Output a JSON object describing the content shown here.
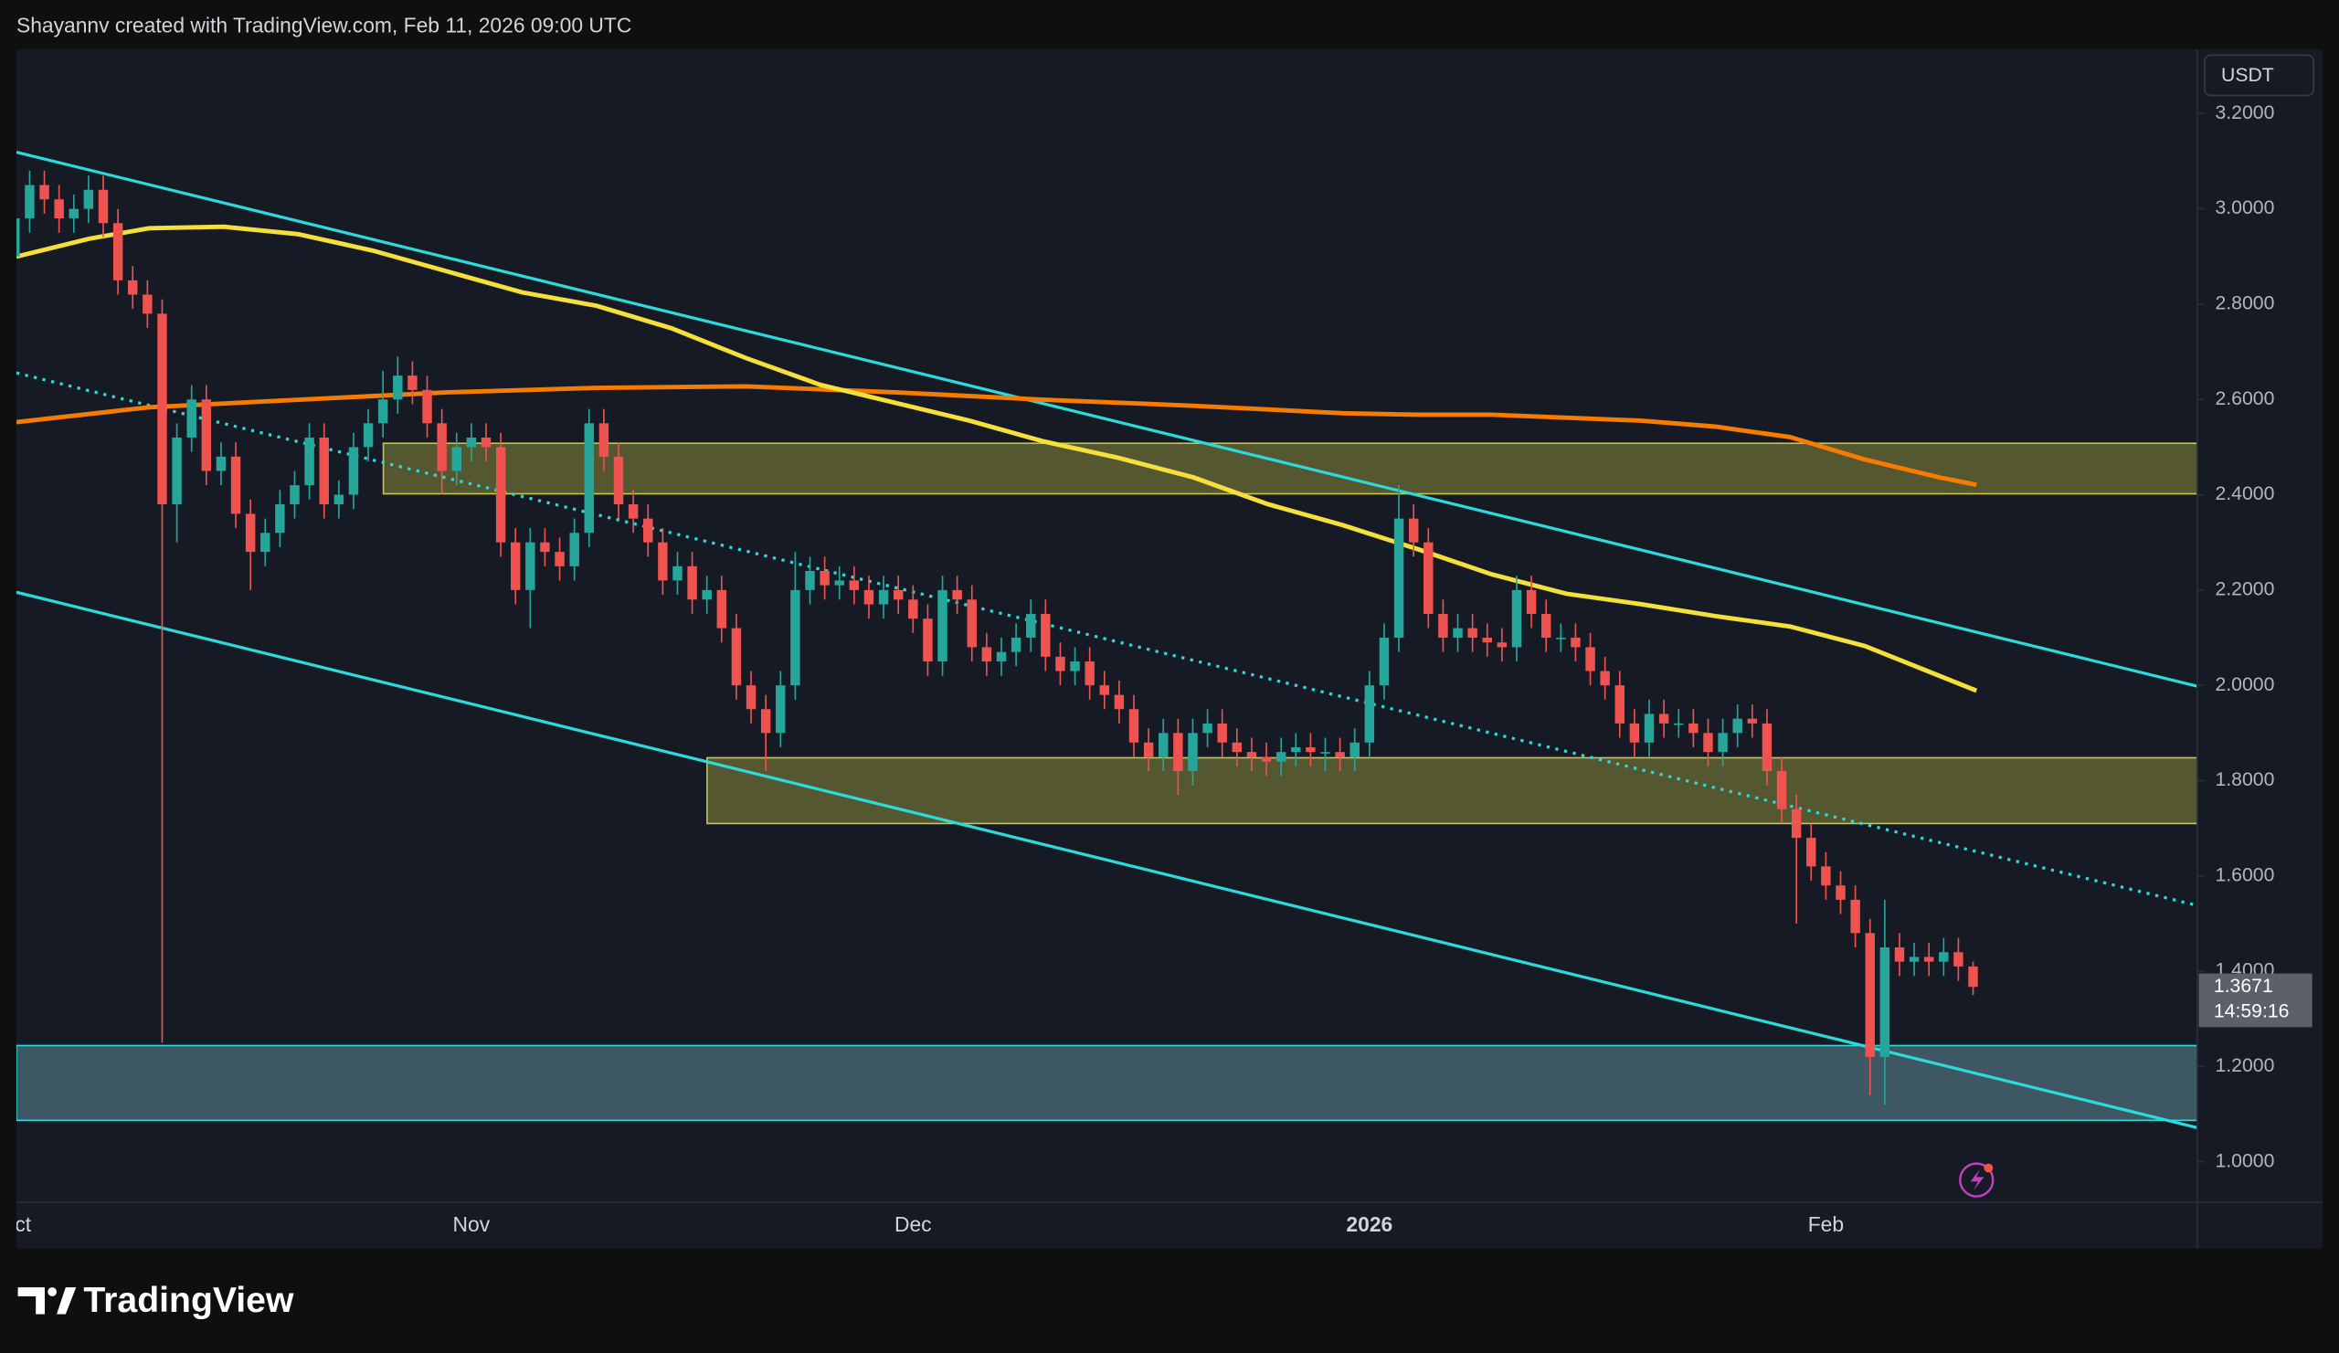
{
  "header": {
    "attribution": "Shayannv created with TradingView.com, Feb 11, 2026 09:00 UTC"
  },
  "chart_data": {
    "type": "candlestick",
    "categories": [
      "Oct",
      null,
      null,
      null,
      null,
      null,
      null,
      null,
      null,
      null,
      null,
      null,
      null,
      null,
      null,
      null,
      null,
      null,
      null,
      null,
      null,
      null,
      null,
      null,
      null,
      null,
      null,
      null,
      null,
      null,
      null,
      "Nov",
      null,
      null,
      null,
      null,
      null,
      null,
      null,
      null,
      null,
      null,
      null,
      null,
      null,
      null,
      null,
      null,
      null,
      null,
      null,
      null,
      null,
      null,
      null,
      null,
      null,
      null,
      null,
      null,
      null,
      "Dec",
      null,
      null,
      null,
      null,
      null,
      null,
      null,
      null,
      null,
      null,
      null,
      null,
      null,
      null,
      null,
      null,
      null,
      null,
      null,
      null,
      null,
      null,
      null,
      null,
      null,
      null,
      null,
      null,
      null,
      null,
      "2026",
      null,
      null,
      null,
      null,
      null,
      null,
      null,
      null,
      null,
      null,
      null,
      null,
      null,
      null,
      null,
      null,
      null,
      null,
      null,
      null,
      null,
      null,
      null,
      null,
      null,
      null,
      null,
      null,
      null,
      null,
      "Feb",
      null,
      null,
      null,
      null,
      null,
      null,
      null,
      null,
      null,
      null
    ],
    "open": [
      2.9,
      2.98,
      3.05,
      3.02,
      2.98,
      3.0,
      3.04,
      2.97,
      2.85,
      2.82,
      2.78,
      2.38,
      2.52,
      2.6,
      2.45,
      2.48,
      2.36,
      2.28,
      2.32,
      2.38,
      2.42,
      2.52,
      2.38,
      2.4,
      2.5,
      2.55,
      2.6,
      2.65,
      2.62,
      2.55,
      2.45,
      2.5,
      2.52,
      2.5,
      2.3,
      2.2,
      2.3,
      2.28,
      2.25,
      2.32,
      2.55,
      2.48,
      2.38,
      2.35,
      2.3,
      2.22,
      2.25,
      2.18,
      2.2,
      2.12,
      2.0,
      1.95,
      1.9,
      2.0,
      2.2,
      2.24,
      2.21,
      2.22,
      2.2,
      2.17,
      2.2,
      2.18,
      2.14,
      2.05,
      2.2,
      2.18,
      2.08,
      2.05,
      2.07,
      2.1,
      2.15,
      2.06,
      2.03,
      2.05,
      2.0,
      1.98,
      1.95,
      1.88,
      1.85,
      1.9,
      1.82,
      1.9,
      1.92,
      1.88,
      1.86,
      1.85,
      1.84,
      1.86,
      1.87,
      1.86,
      1.86,
      1.85,
      1.88,
      2.0,
      2.1,
      2.35,
      2.3,
      2.15,
      2.1,
      2.12,
      2.1,
      2.09,
      2.08,
      2.2,
      2.15,
      2.1,
      2.1,
      2.08,
      2.03,
      2.0,
      1.92,
      1.88,
      1.94,
      1.92,
      1.92,
      1.9,
      1.86,
      1.9,
      1.93,
      1.92,
      1.82,
      1.74,
      1.68,
      1.62,
      1.58,
      1.55,
      1.48,
      1.22,
      1.45,
      1.42,
      1.43,
      1.42,
      1.44,
      1.41
    ],
    "high": [
      3.01,
      3.08,
      3.08,
      3.05,
      3.03,
      3.07,
      3.07,
      3.0,
      2.88,
      2.85,
      2.81,
      2.55,
      2.63,
      2.63,
      2.51,
      2.51,
      2.39,
      2.35,
      2.41,
      2.45,
      2.55,
      2.55,
      2.43,
      2.53,
      2.58,
      2.66,
      2.69,
      2.68,
      2.65,
      2.58,
      2.53,
      2.55,
      2.55,
      2.53,
      2.33,
      2.33,
      2.33,
      2.31,
      2.35,
      2.58,
      2.58,
      2.51,
      2.41,
      2.38,
      2.33,
      2.28,
      2.28,
      2.23,
      2.23,
      2.15,
      2.03,
      1.98,
      2.03,
      2.28,
      2.27,
      2.27,
      2.25,
      2.25,
      2.23,
      2.23,
      2.23,
      2.21,
      2.17,
      2.23,
      2.23,
      2.21,
      2.11,
      2.1,
      2.13,
      2.18,
      2.18,
      2.09,
      2.08,
      2.08,
      2.03,
      2.01,
      1.98,
      1.91,
      1.93,
      1.93,
      1.93,
      1.95,
      1.95,
      1.91,
      1.89,
      1.88,
      1.89,
      1.9,
      1.9,
      1.89,
      1.89,
      1.91,
      2.03,
      2.13,
      2.42,
      2.38,
      2.33,
      2.18,
      2.15,
      2.15,
      2.13,
      2.12,
      2.23,
      2.23,
      2.18,
      2.13,
      2.13,
      2.11,
      2.06,
      2.03,
      1.95,
      1.97,
      1.97,
      1.95,
      1.95,
      1.93,
      1.93,
      1.96,
      1.96,
      1.95,
      1.85,
      1.77,
      1.71,
      1.65,
      1.61,
      1.58,
      1.51,
      1.55,
      1.48,
      1.46,
      1.46,
      1.47,
      1.47,
      1.42
    ],
    "low": [
      2.87,
      2.95,
      2.99,
      2.95,
      2.95,
      2.97,
      2.94,
      2.82,
      2.79,
      2.75,
      1.25,
      2.3,
      2.49,
      2.42,
      2.42,
      2.33,
      2.2,
      2.25,
      2.29,
      2.35,
      2.39,
      2.35,
      2.35,
      2.37,
      2.47,
      2.52,
      2.57,
      2.59,
      2.52,
      2.4,
      2.42,
      2.47,
      2.47,
      2.27,
      2.17,
      2.12,
      2.25,
      2.22,
      2.22,
      2.29,
      2.45,
      2.35,
      2.32,
      2.27,
      2.19,
      2.19,
      2.15,
      2.15,
      2.09,
      1.97,
      1.92,
      1.82,
      1.87,
      1.97,
      2.17,
      2.18,
      2.18,
      2.17,
      2.14,
      2.14,
      2.15,
      2.11,
      2.02,
      2.02,
      2.15,
      2.05,
      2.02,
      2.02,
      2.04,
      2.07,
      2.03,
      2.0,
      2.0,
      1.97,
      1.95,
      1.92,
      1.85,
      1.82,
      1.82,
      1.77,
      1.79,
      1.87,
      1.85,
      1.83,
      1.82,
      1.81,
      1.81,
      1.83,
      1.83,
      1.82,
      1.82,
      1.82,
      1.85,
      1.97,
      2.07,
      2.27,
      2.12,
      2.07,
      2.07,
      2.07,
      2.06,
      2.05,
      2.05,
      2.12,
      2.07,
      2.07,
      2.05,
      2.0,
      1.97,
      1.89,
      1.85,
      1.85,
      1.89,
      1.89,
      1.87,
      1.83,
      1.83,
      1.87,
      1.89,
      1.79,
      1.71,
      1.5,
      1.59,
      1.55,
      1.52,
      1.45,
      1.14,
      1.12,
      1.39,
      1.39,
      1.39,
      1.39,
      1.38,
      1.35
    ],
    "close": [
      2.98,
      3.05,
      3.02,
      2.98,
      3.0,
      3.04,
      2.97,
      2.85,
      2.82,
      2.78,
      2.38,
      2.52,
      2.6,
      2.45,
      2.48,
      2.36,
      2.28,
      2.32,
      2.38,
      2.42,
      2.52,
      2.38,
      2.4,
      2.5,
      2.55,
      2.6,
      2.65,
      2.62,
      2.55,
      2.45,
      2.5,
      2.52,
      2.5,
      2.3,
      2.2,
      2.3,
      2.28,
      2.25,
      2.32,
      2.55,
      2.48,
      2.38,
      2.35,
      2.3,
      2.22,
      2.25,
      2.18,
      2.2,
      2.12,
      2.0,
      1.95,
      1.9,
      2.0,
      2.2,
      2.24,
      2.21,
      2.22,
      2.2,
      2.17,
      2.2,
      2.18,
      2.14,
      2.05,
      2.2,
      2.18,
      2.08,
      2.05,
      2.07,
      2.1,
      2.15,
      2.06,
      2.03,
      2.05,
      2.0,
      1.98,
      1.95,
      1.88,
      1.85,
      1.9,
      1.82,
      1.9,
      1.92,
      1.88,
      1.86,
      1.85,
      1.84,
      1.86,
      1.87,
      1.86,
      1.86,
      1.85,
      1.88,
      2.0,
      2.1,
      2.35,
      2.3,
      2.15,
      2.1,
      2.12,
      2.1,
      2.09,
      2.08,
      2.2,
      2.15,
      2.1,
      2.1,
      2.08,
      2.03,
      2.0,
      1.92,
      1.88,
      1.94,
      1.92,
      1.92,
      1.9,
      1.86,
      1.9,
      1.93,
      1.92,
      1.82,
      1.74,
      1.68,
      1.62,
      1.58,
      1.55,
      1.48,
      1.22,
      1.45,
      1.42,
      1.43,
      1.42,
      1.44,
      1.41,
      1.3671
    ],
    "up_color": "#26a69a",
    "down_color": "#ef5350",
    "ylim": [
      0.915,
      3.335
    ],
    "yticks": [
      {
        "value": 1,
        "label": "1.0000"
      },
      {
        "value": 1.2,
        "label": "1.2000"
      },
      {
        "value": 1.4,
        "label": "1.4000"
      },
      {
        "value": 1.6,
        "label": "1.6000"
      },
      {
        "value": 1.8,
        "label": "1.8000"
      },
      {
        "value": 2,
        "label": "2.0000"
      },
      {
        "value": 2.2,
        "label": "2.2000"
      },
      {
        "value": 2.4,
        "label": "2.4000"
      },
      {
        "value": 2.6,
        "label": "2.6000"
      },
      {
        "value": 2.8,
        "label": "2.8000"
      },
      {
        "value": 3,
        "label": "3.0000"
      },
      {
        "value": 3.2,
        "label": "3.2000"
      }
    ],
    "zones": [
      {
        "range": [
          2.402,
          2.508
        ],
        "color": "#8a8a3a"
      },
      {
        "range": [
          1.71,
          1.848
        ],
        "color": "#8a8a3a"
      },
      {
        "range": [
          1.087,
          1.244
        ],
        "color": "#5f8d98"
      }
    ],
    "currency": "USDT",
    "last_price": 1.3671,
    "countdown": "14:59:16"
  },
  "footer": {
    "brand": "TradingView"
  }
}
